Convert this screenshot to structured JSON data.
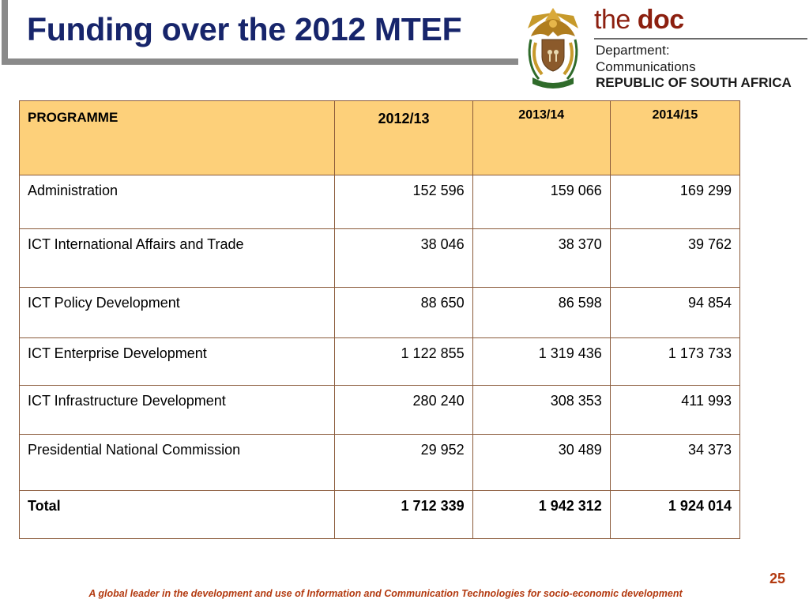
{
  "slide": {
    "title": "Funding over the 2012 MTEF",
    "page_number": "25",
    "footer": "A global leader in the development and use of Information and Communication Technologies for socio-economic development"
  },
  "logo": {
    "brand_the": "the",
    "brand_doc": "doc",
    "line1": "Department:",
    "line2": "Communications",
    "line3": "REPUBLIC OF SOUTH AFRICA",
    "crest_icon": "coat-of-arms-icon",
    "colors": {
      "brand": "#8c1f0f",
      "crest_gold": "#c79a2b",
      "crest_green": "#2f6b2a"
    }
  },
  "table": {
    "header": [
      "PROGRAMME",
      "2012/13",
      "2013/14",
      "2014/15"
    ],
    "rows": [
      {
        "programme": "Administration",
        "y2012": "152 596",
        "y2013": "159 066",
        "y2014": "169 299"
      },
      {
        "programme": "ICT International Affairs and Trade",
        "y2012": "38 046",
        "y2013": "38 370",
        "y2014": "39 762"
      },
      {
        "programme": "ICT Policy Development",
        "y2012": "88 650",
        "y2013": "86 598",
        "y2014": "94 854"
      },
      {
        "programme": "ICT Enterprise Development",
        "y2012": "1 122 855",
        "y2013": "1 319 436",
        "y2014": "1 173 733"
      },
      {
        "programme": "ICT Infrastructure Development",
        "y2012": "280 240",
        "y2013": "308 353",
        "y2014": "411 993"
      },
      {
        "programme": "Presidential National Commission",
        "y2012": "29 952",
        "y2013": "30 489",
        "y2014": "34 373"
      },
      {
        "programme": "Total",
        "y2012": "1 712 339",
        "y2013": "1 942 312",
        "y2014": "1 924 014"
      }
    ],
    "colors": {
      "header_bg": "#fdd07a",
      "border": "#8a5a3a"
    }
  }
}
